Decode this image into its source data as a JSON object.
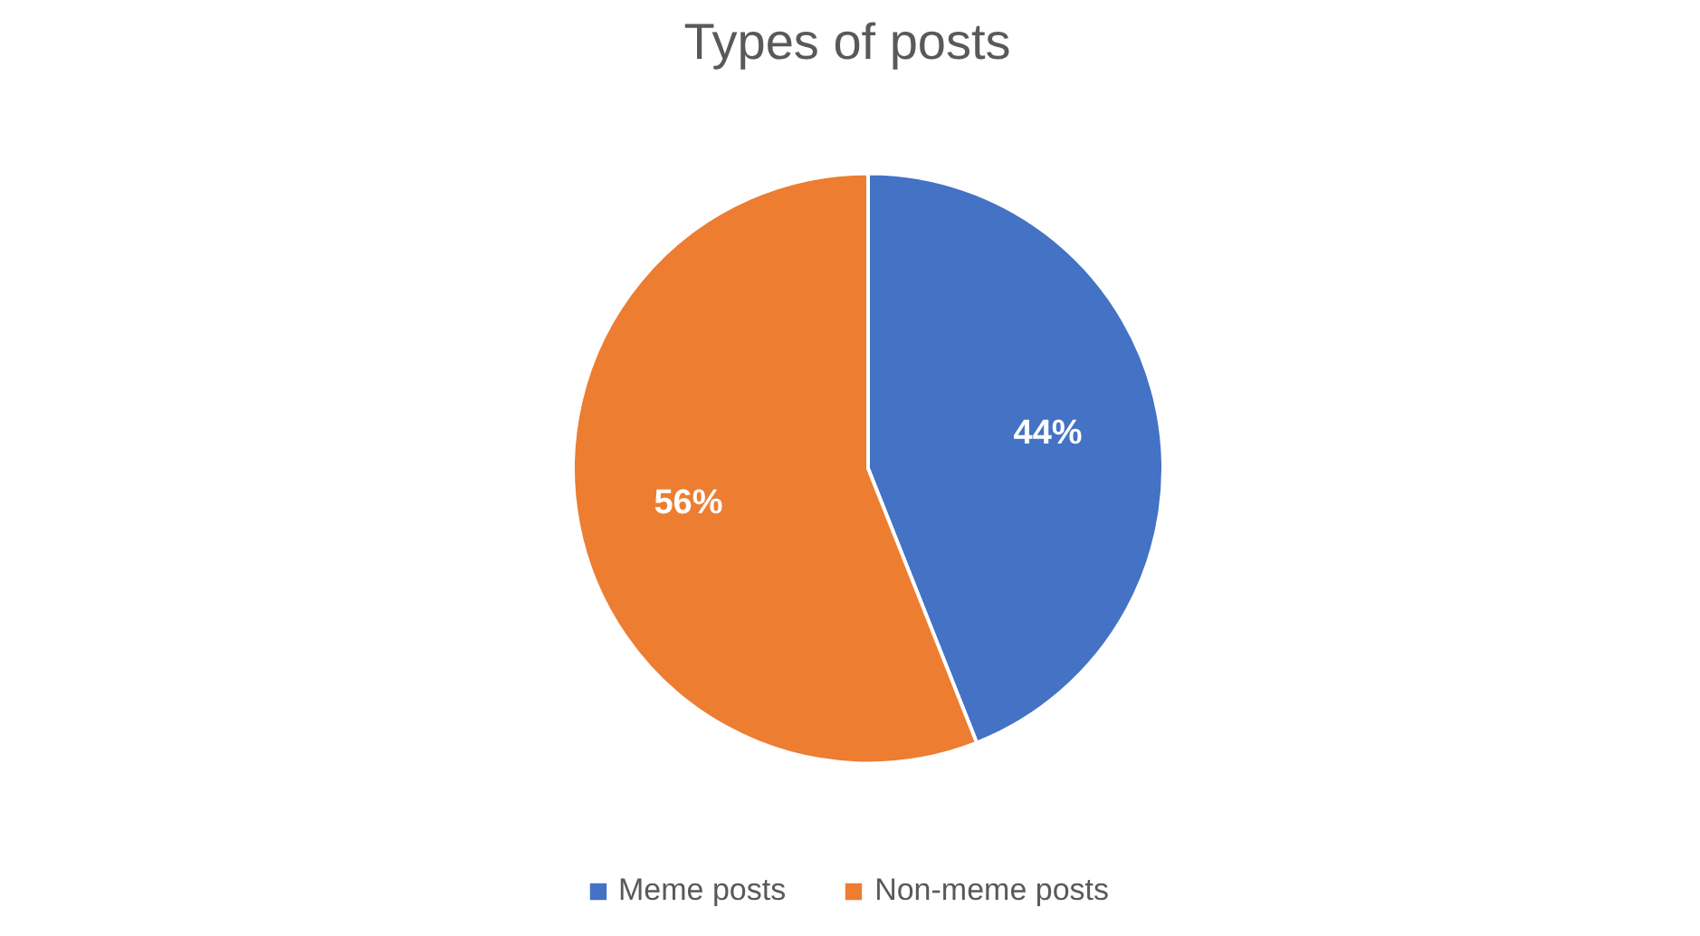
{
  "chart_data": {
    "type": "pie",
    "title": "Types of posts",
    "categories": [
      "Meme posts",
      "Non-meme posts"
    ],
    "values": [
      44,
      56
    ],
    "colors": [
      "#4472c4",
      "#ed7d31"
    ],
    "value_labels": [
      "44%",
      "56%"
    ],
    "legend": "bottom"
  }
}
